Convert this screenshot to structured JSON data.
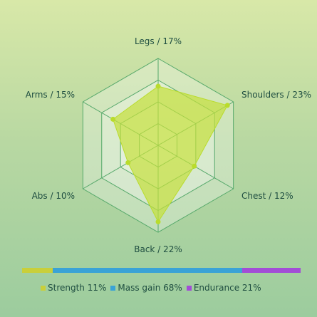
{
  "chart_data": [
    {
      "type": "radar",
      "categories": [
        "Legs",
        "Shoulders",
        "Chest",
        "Back",
        "Abs",
        "Arms"
      ],
      "labels": [
        "Legs / 17%",
        "Shoulders / 23%",
        "Chest / 12%",
        "Back / 22%",
        "Abs / 10%",
        "Arms / 15%"
      ],
      "values": [
        17,
        23,
        12,
        22,
        10,
        15
      ],
      "max": 25,
      "rings": 4,
      "series_color": "#c4e03c",
      "point_color": "#b9dc2c",
      "grid_color": "#55a86a",
      "grid": true
    },
    {
      "type": "bar",
      "orientation": "horizontal-stacked",
      "categories": [
        "Strength",
        "Mass gain",
        "Endurance"
      ],
      "values": [
        11,
        68,
        21
      ],
      "colors": [
        "#c9cf3a",
        "#3aa3d6",
        "#a24dd6"
      ],
      "legend_labels": [
        "Strength 11%",
        "Mass gain 68%",
        "Endurance 21%"
      ],
      "legend_position": "bottom"
    }
  ]
}
